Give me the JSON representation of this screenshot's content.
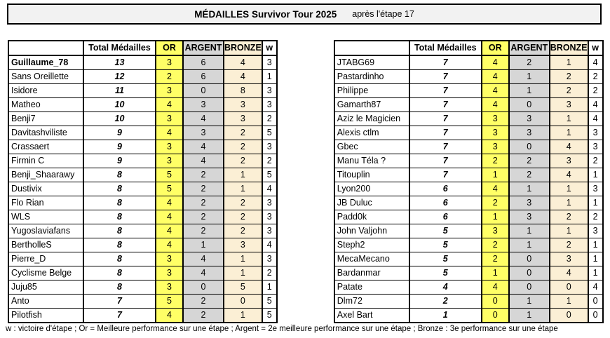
{
  "title": {
    "main": "MÉDAILLES Survivor Tour 2025",
    "suffix": "après l'étape 17"
  },
  "columns": [
    "",
    "Total Médailles",
    "OR",
    "ARGENT",
    "BRONZE",
    "w"
  ],
  "colors": {
    "or": "#FFFF66",
    "argent": "#D6D6D6",
    "bronze": "#FBEFD5",
    "title_bg": "#F2F2F2",
    "border": "#000000"
  },
  "bold_names": [
    "Guillaume_78"
  ],
  "tables": [
    {
      "rows": [
        [
          "Guillaume_78",
          "13",
          "3",
          "6",
          "4",
          "3"
        ],
        [
          "Sans Oreillette",
          "12",
          "2",
          "6",
          "4",
          "1"
        ],
        [
          "Isidore",
          "11",
          "3",
          "0",
          "8",
          "3"
        ],
        [
          "Matheo",
          "10",
          "4",
          "3",
          "3",
          "3"
        ],
        [
          "Benji7",
          "10",
          "3",
          "4",
          "3",
          "2"
        ],
        [
          "Davitashviliste",
          "9",
          "4",
          "3",
          "2",
          "5"
        ],
        [
          "Crassaert",
          "9",
          "3",
          "4",
          "2",
          "3"
        ],
        [
          "Firmin C",
          "9",
          "3",
          "4",
          "2",
          "2"
        ],
        [
          "Benji_Shaarawy",
          "8",
          "5",
          "2",
          "1",
          "5"
        ],
        [
          "Dustivix",
          "8",
          "5",
          "2",
          "1",
          "4"
        ],
        [
          "Flo Rian",
          "8",
          "4",
          "2",
          "2",
          "3"
        ],
        [
          "WLS",
          "8",
          "4",
          "2",
          "2",
          "3"
        ],
        [
          "Yugoslaviafans",
          "8",
          "4",
          "2",
          "2",
          "3"
        ],
        [
          "BertholleS",
          "8",
          "4",
          "1",
          "3",
          "4"
        ],
        [
          "Pierre_D",
          "8",
          "3",
          "4",
          "1",
          "3"
        ],
        [
          "Cyclisme Belge",
          "8",
          "3",
          "4",
          "1",
          "2"
        ],
        [
          "Juju85",
          "8",
          "3",
          "0",
          "5",
          "1"
        ],
        [
          "Anto",
          "7",
          "5",
          "2",
          "0",
          "5"
        ],
        [
          "Pilotfish",
          "7",
          "4",
          "2",
          "1",
          "5"
        ]
      ]
    },
    {
      "rows": [
        [
          "JTABG69",
          "7",
          "4",
          "2",
          "1",
          "4"
        ],
        [
          "Pastardinho",
          "7",
          "4",
          "1",
          "2",
          "2"
        ],
        [
          "Philippe",
          "7",
          "4",
          "1",
          "2",
          "2"
        ],
        [
          "Gamarth87",
          "7",
          "4",
          "0",
          "3",
          "4"
        ],
        [
          "Aziz le Magicien",
          "7",
          "3",
          "3",
          "1",
          "4"
        ],
        [
          "Alexis ctlm",
          "7",
          "3",
          "3",
          "1",
          "3"
        ],
        [
          "Gbec",
          "7",
          "3",
          "0",
          "4",
          "3"
        ],
        [
          "Manu Téla ?",
          "7",
          "2",
          "2",
          "3",
          "2"
        ],
        [
          "Titouplin",
          "7",
          "1",
          "2",
          "4",
          "1"
        ],
        [
          "Lyon200",
          "6",
          "4",
          "1",
          "1",
          "3"
        ],
        [
          "JB Duluc",
          "6",
          "2",
          "3",
          "1",
          "1"
        ],
        [
          "Padd0k",
          "6",
          "1",
          "3",
          "2",
          "2"
        ],
        [
          "John Valjohn",
          "5",
          "3",
          "1",
          "1",
          "3"
        ],
        [
          "Steph2",
          "5",
          "2",
          "1",
          "2",
          "1"
        ],
        [
          "MecaMecano",
          "5",
          "2",
          "0",
          "3",
          "1"
        ],
        [
          "Bardanmar",
          "5",
          "1",
          "0",
          "4",
          "1"
        ],
        [
          "Patate",
          "4",
          "4",
          "0",
          "0",
          "4"
        ],
        [
          "Dlm72",
          "2",
          "0",
          "1",
          "1",
          "0"
        ],
        [
          "Axel Bart",
          "1",
          "0",
          "1",
          "0",
          "0"
        ]
      ]
    }
  ],
  "footer": "w : victoire d'étape ; Or = Meilleure performance sur une étape ; Argent = 2e meilleure performance sur une étape ;  Bronze : 3e performance sur une étape"
}
